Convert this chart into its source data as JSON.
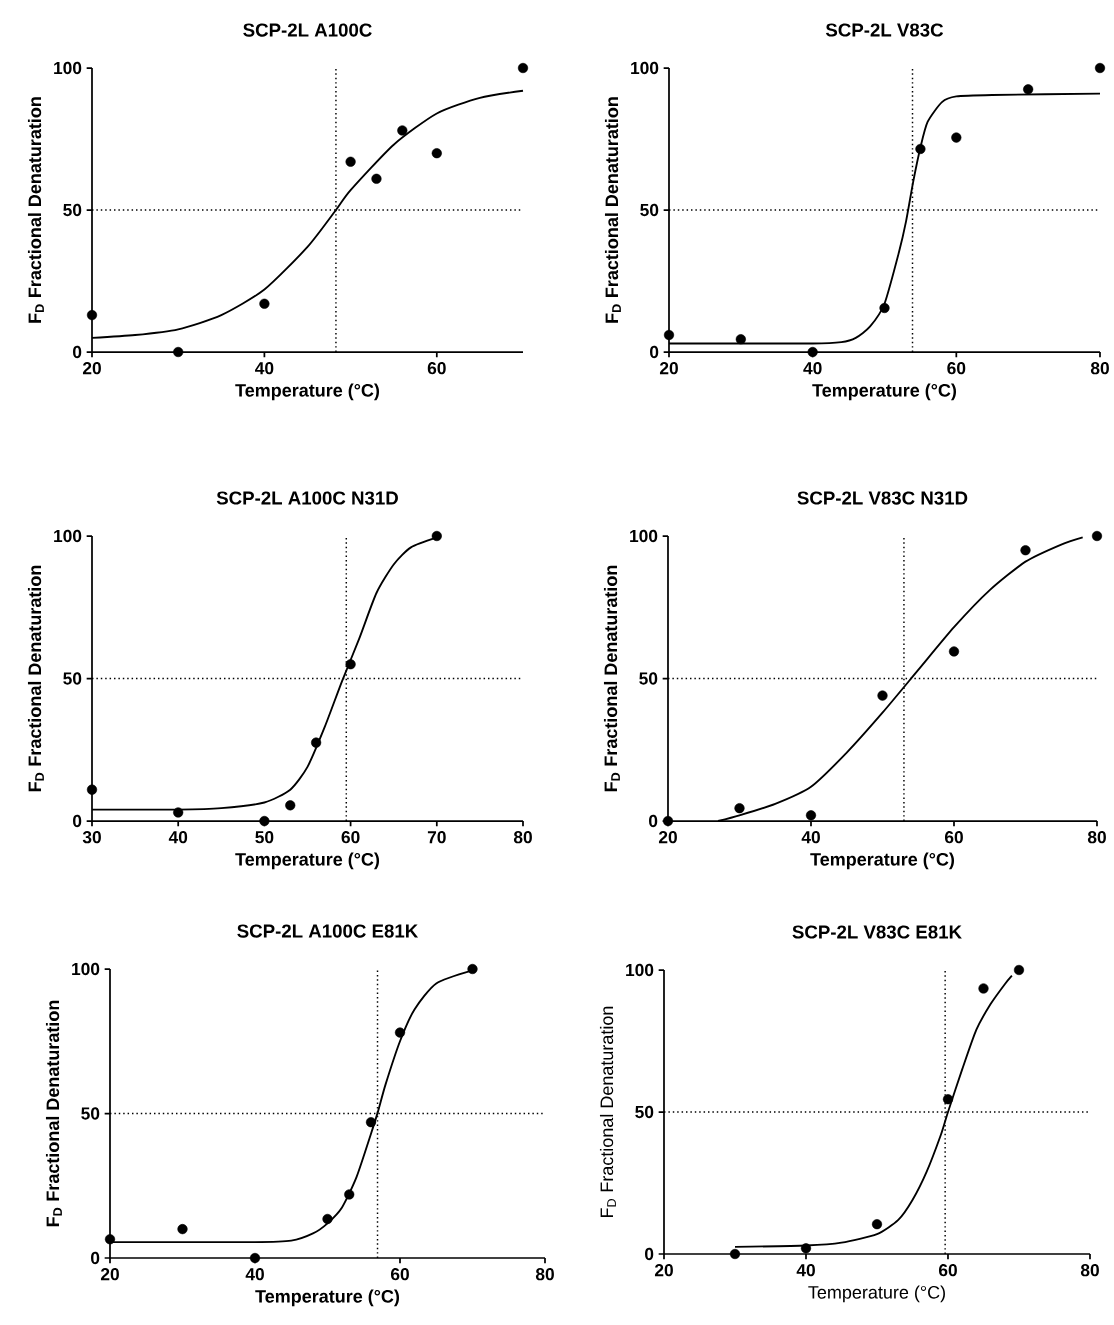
{
  "chart_data": [
    {
      "type": "scatter",
      "title": "SCP-2L  A100C",
      "xlabel": "Temperature (°C)",
      "ylabel": "F$_{D}$ Fractional Denaturation",
      "xlim": [
        20,
        70
      ],
      "ylim": [
        0,
        100
      ],
      "xticks": [
        20,
        40,
        60
      ],
      "yticks": [
        0,
        50,
        100
      ],
      "marker": "circle",
      "series": [
        {
          "color": "#000000",
          "x": [
            20,
            30,
            40,
            50,
            53,
            56,
            60,
            70
          ],
          "values": [
            13,
            0,
            17,
            67,
            61,
            78,
            70,
            100
          ]
        },
        {
          "type": "line",
          "color": "#000000",
          "marker": "none",
          "x": [
            20,
            25,
            30,
            35,
            40,
            45,
            48.3,
            50,
            55,
            60,
            65,
            70
          ],
          "values": [
            5,
            6,
            8,
            13,
            22,
            37,
            50,
            57,
            73,
            84,
            89.5,
            92
          ]
        }
      ],
      "ref_lines": [
        {
          "axis": "y",
          "value": 50,
          "line_style": "dotted"
        },
        {
          "axis": "x",
          "value": 48.3,
          "line_style": "dotted"
        }
      ]
    },
    {
      "type": "scatter",
      "title": "SCP-2L V83C",
      "xlabel": "Temperature (°C)",
      "ylabel": "F$_{D}$ Fractional Denaturation",
      "xlim": [
        20,
        80
      ],
      "ylim": [
        0,
        100
      ],
      "xticks": [
        20,
        40,
        60,
        80
      ],
      "yticks": [
        0,
        50,
        100
      ],
      "marker": "circle",
      "series": [
        {
          "color": "#000000",
          "x": [
            20,
            30,
            40,
            50,
            55,
            60,
            70,
            80
          ],
          "values": [
            6,
            4.5,
            0,
            15.5,
            71.5,
            75.5,
            92.5,
            100
          ]
        },
        {
          "type": "line",
          "color": "#000000",
          "marker": "none",
          "x": [
            20,
            40,
            44,
            46,
            48,
            50,
            52,
            53,
            54,
            55,
            56,
            58,
            60,
            65,
            80
          ],
          "values": [
            3,
            3,
            3.5,
            5,
            9,
            17,
            35,
            46,
            60,
            72,
            81,
            88,
            90,
            90.5,
            91
          ]
        }
      ],
      "ref_lines": [
        {
          "axis": "y",
          "value": 50,
          "line_style": "dotted"
        },
        {
          "axis": "x",
          "value": 53.9,
          "line_style": "dotted"
        }
      ]
    },
    {
      "type": "scatter",
      "title": "SCP-2L A100C N31D",
      "xlabel": "Temperature (°C)",
      "ylabel": "F$_{D}$ Fractional Denaturation",
      "xlim": [
        30,
        80
      ],
      "ylim": [
        0,
        100
      ],
      "xticks": [
        30,
        40,
        50,
        60,
        70,
        80
      ],
      "yticks": [
        0,
        50,
        100
      ],
      "marker": "circle",
      "series": [
        {
          "color": "#000000",
          "x": [
            30,
            40,
            50,
            53,
            56,
            60,
            70
          ],
          "values": [
            11,
            3,
            0,
            5.5,
            27.5,
            55,
            100
          ]
        },
        {
          "type": "line",
          "color": "#000000",
          "marker": "none",
          "x": [
            30,
            40,
            45,
            50,
            53,
            55,
            57,
            59,
            61,
            63,
            65,
            67,
            70
          ],
          "values": [
            4,
            4,
            4.5,
            6.5,
            11,
            19,
            33,
            49,
            64,
            80,
            90,
            96,
            99.5
          ]
        }
      ],
      "ref_lines": [
        {
          "axis": "y",
          "value": 50,
          "line_style": "dotted"
        },
        {
          "axis": "x",
          "value": 59.5,
          "line_style": "dotted"
        }
      ]
    },
    {
      "type": "scatter",
      "title": "SCP-2L V83C N31D",
      "xlabel": "Temperature (°C)",
      "ylabel": "F$_{D}$ Fractional Denaturation",
      "xlim": [
        20,
        80
      ],
      "ylim": [
        0,
        100
      ],
      "xticks": [
        20,
        40,
        60,
        80
      ],
      "yticks": [
        0,
        50,
        100
      ],
      "marker": "circle",
      "series": [
        {
          "color": "#000000",
          "x": [
            20,
            30,
            40,
            50,
            60,
            70,
            80
          ],
          "values": [
            0,
            4.5,
            2,
            44,
            59.5,
            95,
            100
          ]
        },
        {
          "type": "line",
          "color": "#000000",
          "marker": "none",
          "x": [
            27,
            30,
            35,
            40,
            45,
            50,
            55,
            60,
            65,
            70,
            75,
            78
          ],
          "values": [
            0,
            2,
            6,
            12,
            24,
            38,
            53,
            68,
            81,
            91,
            97,
            99.5
          ]
        }
      ],
      "ref_lines": [
        {
          "axis": "y",
          "value": 50,
          "line_style": "dotted"
        },
        {
          "axis": "x",
          "value": 53,
          "line_style": "dotted"
        }
      ]
    },
    {
      "type": "scatter",
      "title": "SCP-2L A100C E81K",
      "xlabel": "Temperature (°C)",
      "ylabel": "F$_{D}$ Fractional Denaturation",
      "xlim": [
        20,
        80
      ],
      "ylim": [
        0,
        100
      ],
      "xticks": [
        20,
        40,
        60,
        80
      ],
      "yticks": [
        0,
        50,
        100
      ],
      "marker": "circle",
      "series": [
        {
          "color": "#000000",
          "x": [
            20,
            30,
            40,
            50,
            53,
            56,
            60,
            70
          ],
          "values": [
            6.5,
            10,
            0,
            13.5,
            22,
            47,
            78,
            100
          ]
        },
        {
          "type": "line",
          "color": "#000000",
          "marker": "none",
          "x": [
            20,
            40,
            45,
            48,
            50,
            52,
            54,
            56,
            57,
            58,
            60,
            62,
            65,
            70
          ],
          "values": [
            5.5,
            5.5,
            6,
            8.5,
            12,
            17.5,
            28,
            43,
            51,
            60,
            75,
            86,
            95,
            99.5
          ]
        }
      ],
      "ref_lines": [
        {
          "axis": "y",
          "value": 50,
          "line_style": "dotted"
        },
        {
          "axis": "x",
          "value": 56.9,
          "line_style": "dotted"
        }
      ]
    },
    {
      "type": "scatter",
      "title": "SCP-2L V83C E81K",
      "xlabel": "Temperature (°C)",
      "ylabel": "F$_{D}$ Fractional Denaturation",
      "xlim": [
        20,
        80
      ],
      "ylim": [
        0,
        100
      ],
      "xticks": [
        20,
        40,
        60,
        80
      ],
      "yticks": [
        0,
        50,
        100
      ],
      "marker": "circle",
      "series": [
        {
          "color": "#000000",
          "x": [
            30,
            40,
            50,
            60,
            65,
            70
          ],
          "values": [
            0,
            2,
            10.5,
            54.5,
            93.5,
            100
          ]
        },
        {
          "type": "line",
          "color": "#000000",
          "marker": "none",
          "x": [
            30,
            40,
            45,
            50,
            53,
            55,
            57,
            59,
            60,
            62,
            64,
            66,
            68,
            69
          ],
          "values": [
            2.5,
            3,
            4,
            7,
            12,
            19,
            29,
            42,
            50,
            65,
            79,
            88,
            95,
            98
          ]
        }
      ],
      "ref_lines": [
        {
          "axis": "y",
          "value": 50,
          "line_style": "dotted"
        },
        {
          "axis": "x",
          "value": 59.6,
          "line_style": "dotted"
        }
      ]
    }
  ]
}
